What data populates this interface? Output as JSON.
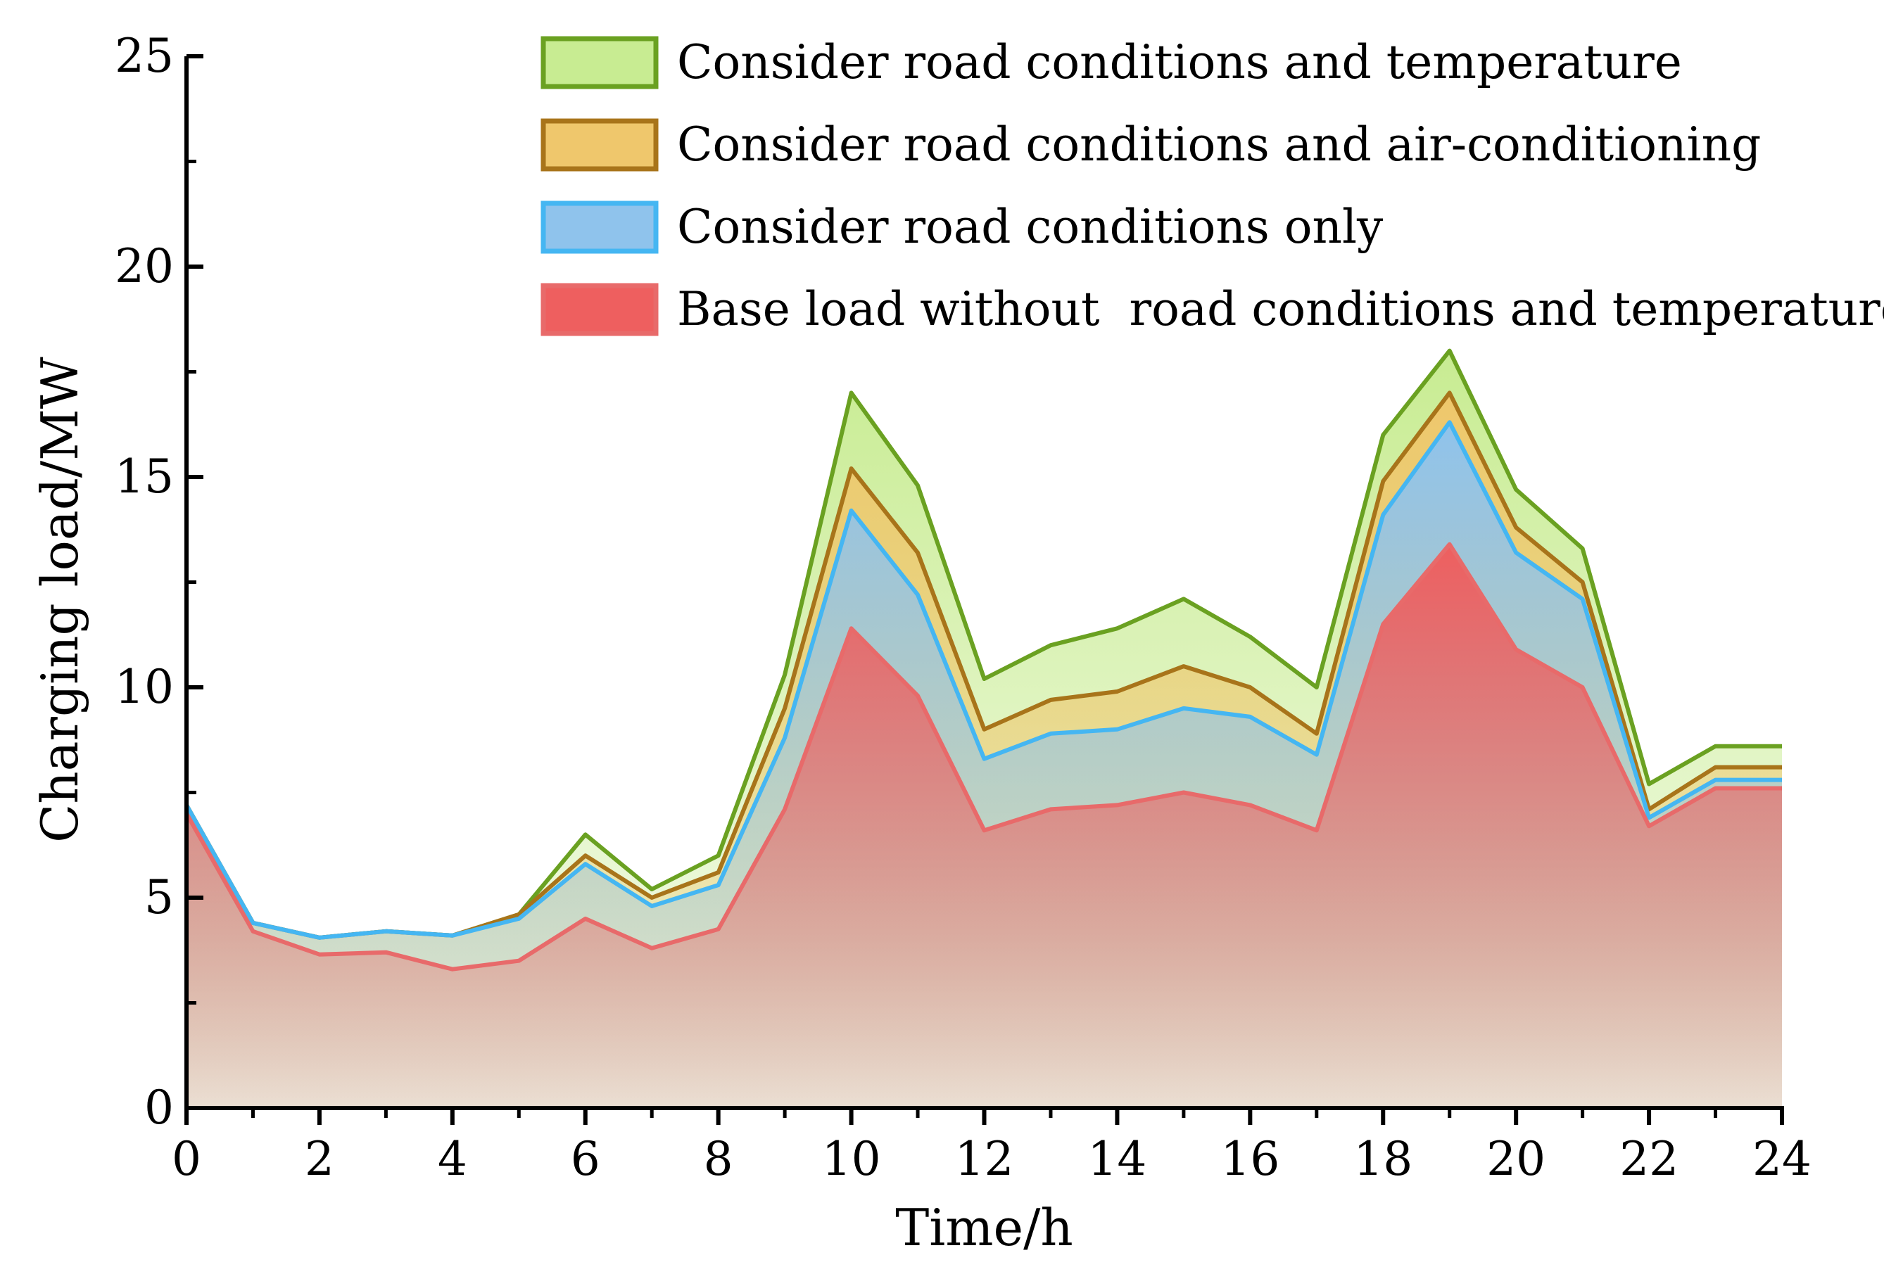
{
  "chart_data": {
    "type": "area",
    "xlabel": "Time/h",
    "ylabel": "Charging load/MW",
    "xlim": [
      0,
      24
    ],
    "ylim": [
      0,
      25
    ],
    "x_ticks": [
      0,
      2,
      4,
      6,
      8,
      10,
      12,
      14,
      16,
      18,
      20,
      22,
      24
    ],
    "y_ticks": [
      0,
      5,
      10,
      15,
      20,
      25
    ],
    "x": [
      0,
      1,
      2,
      3,
      4,
      5,
      6,
      7,
      8,
      9,
      10,
      11,
      12,
      13,
      14,
      15,
      16,
      17,
      18,
      19,
      20,
      21,
      22,
      23,
      24
    ],
    "grid": false,
    "legend_position": "top-right",
    "series": [
      {
        "name": "Consider road conditions and temperature",
        "values": [
          7.2,
          4.4,
          4.05,
          4.2,
          4.1,
          4.6,
          6.5,
          5.2,
          6.0,
          10.3,
          17.0,
          14.8,
          10.2,
          11.0,
          11.4,
          12.1,
          11.2,
          10.0,
          16.0,
          18.0,
          14.7,
          13.3,
          7.7,
          8.6,
          8.6
        ],
        "line_color": "#6AA121",
        "fill_color": "#C8EC92"
      },
      {
        "name": "Consider road conditions and air-conditioning",
        "values": [
          7.2,
          4.4,
          4.05,
          4.2,
          4.1,
          4.6,
          6.0,
          5.0,
          5.6,
          9.5,
          15.2,
          13.2,
          9.0,
          9.7,
          9.9,
          10.5,
          10.0,
          8.9,
          14.9,
          17.0,
          13.8,
          12.5,
          7.1,
          8.1,
          8.1
        ],
        "line_color": "#A8741A",
        "fill_color": "#EFC76C"
      },
      {
        "name": "Consider road conditions only",
        "values": [
          7.2,
          4.4,
          4.05,
          4.2,
          4.1,
          4.5,
          5.8,
          4.8,
          5.3,
          8.8,
          14.2,
          12.2,
          8.3,
          8.9,
          9.0,
          9.5,
          9.3,
          8.4,
          14.1,
          16.3,
          13.2,
          12.1,
          6.9,
          7.8,
          7.8
        ],
        "line_color": "#45B6F2",
        "fill_color": "#8FC3EC"
      },
      {
        "name": "Base load without  road conditions and temperature",
        "values": [
          7.0,
          4.2,
          3.65,
          3.7,
          3.3,
          3.5,
          4.5,
          3.8,
          4.25,
          7.1,
          11.4,
          9.8,
          6.6,
          7.1,
          7.2,
          7.5,
          7.2,
          6.6,
          11.5,
          13.4,
          10.9,
          10.0,
          6.7,
          7.6,
          7.6
        ],
        "line_color": "#E86A6A",
        "fill_color": "#EE5F5F"
      }
    ]
  }
}
